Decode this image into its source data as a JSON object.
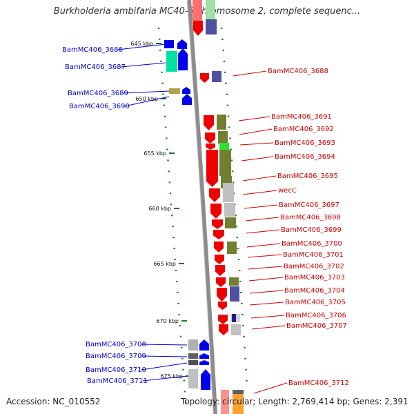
{
  "title": "Burkholderia ambifaria MC40-6 chromosome 2, complete sequenc...",
  "accession": "Accession: NC_010552",
  "topology": "Topology: circular; Length: 2,769,414 bp; Genes: 2,391",
  "colors": {
    "forward_label": "#0000cc",
    "reverse_label": "#cc0000",
    "backbone": "#888888",
    "tick": "#1a7a1a"
  },
  "ticks": [
    {
      "label": "645 kbp"
    },
    {
      "label": "650 kbp"
    },
    {
      "label": "655 kbp"
    },
    {
      "label": "660 kbp"
    },
    {
      "label": "665 kbp"
    },
    {
      "label": "670 kbp"
    },
    {
      "label": "675 kbp"
    }
  ],
  "forward_genes": [
    {
      "label": "BamMC406_3686"
    },
    {
      "label": "BamMC406_3687"
    },
    {
      "label": "BamMC406_3689"
    },
    {
      "label": "BamMC406_3690"
    },
    {
      "label": "BamMC406_3708"
    },
    {
      "label": "BamMC406_3709"
    },
    {
      "label": "BamMC406_3710"
    },
    {
      "label": "BamMC406_3711"
    }
  ],
  "reverse_genes": [
    {
      "label": "BamMC406_3688"
    },
    {
      "label": "BamMC406_3691"
    },
    {
      "label": "BamMC406_3692"
    },
    {
      "label": "BamMC406_3693"
    },
    {
      "label": "BamMC406_3694"
    },
    {
      "label": "BamMC406_3695"
    },
    {
      "label": "wecC"
    },
    {
      "label": "BamMC406_3697"
    },
    {
      "label": "BamMC406_3698"
    },
    {
      "label": "BamMC406_3699"
    },
    {
      "label": "BamMC406_3700"
    },
    {
      "label": "BamMC406_3701"
    },
    {
      "label": "BamMC406_3702"
    },
    {
      "label": "BamMC406_3703"
    },
    {
      "label": "BamMC406_3704"
    },
    {
      "label": "BamMC406_3705"
    },
    {
      "label": "BamMC406_3706"
    },
    {
      "label": "BamMC406_3707"
    },
    {
      "label": "BamMC406_3712"
    }
  ]
}
